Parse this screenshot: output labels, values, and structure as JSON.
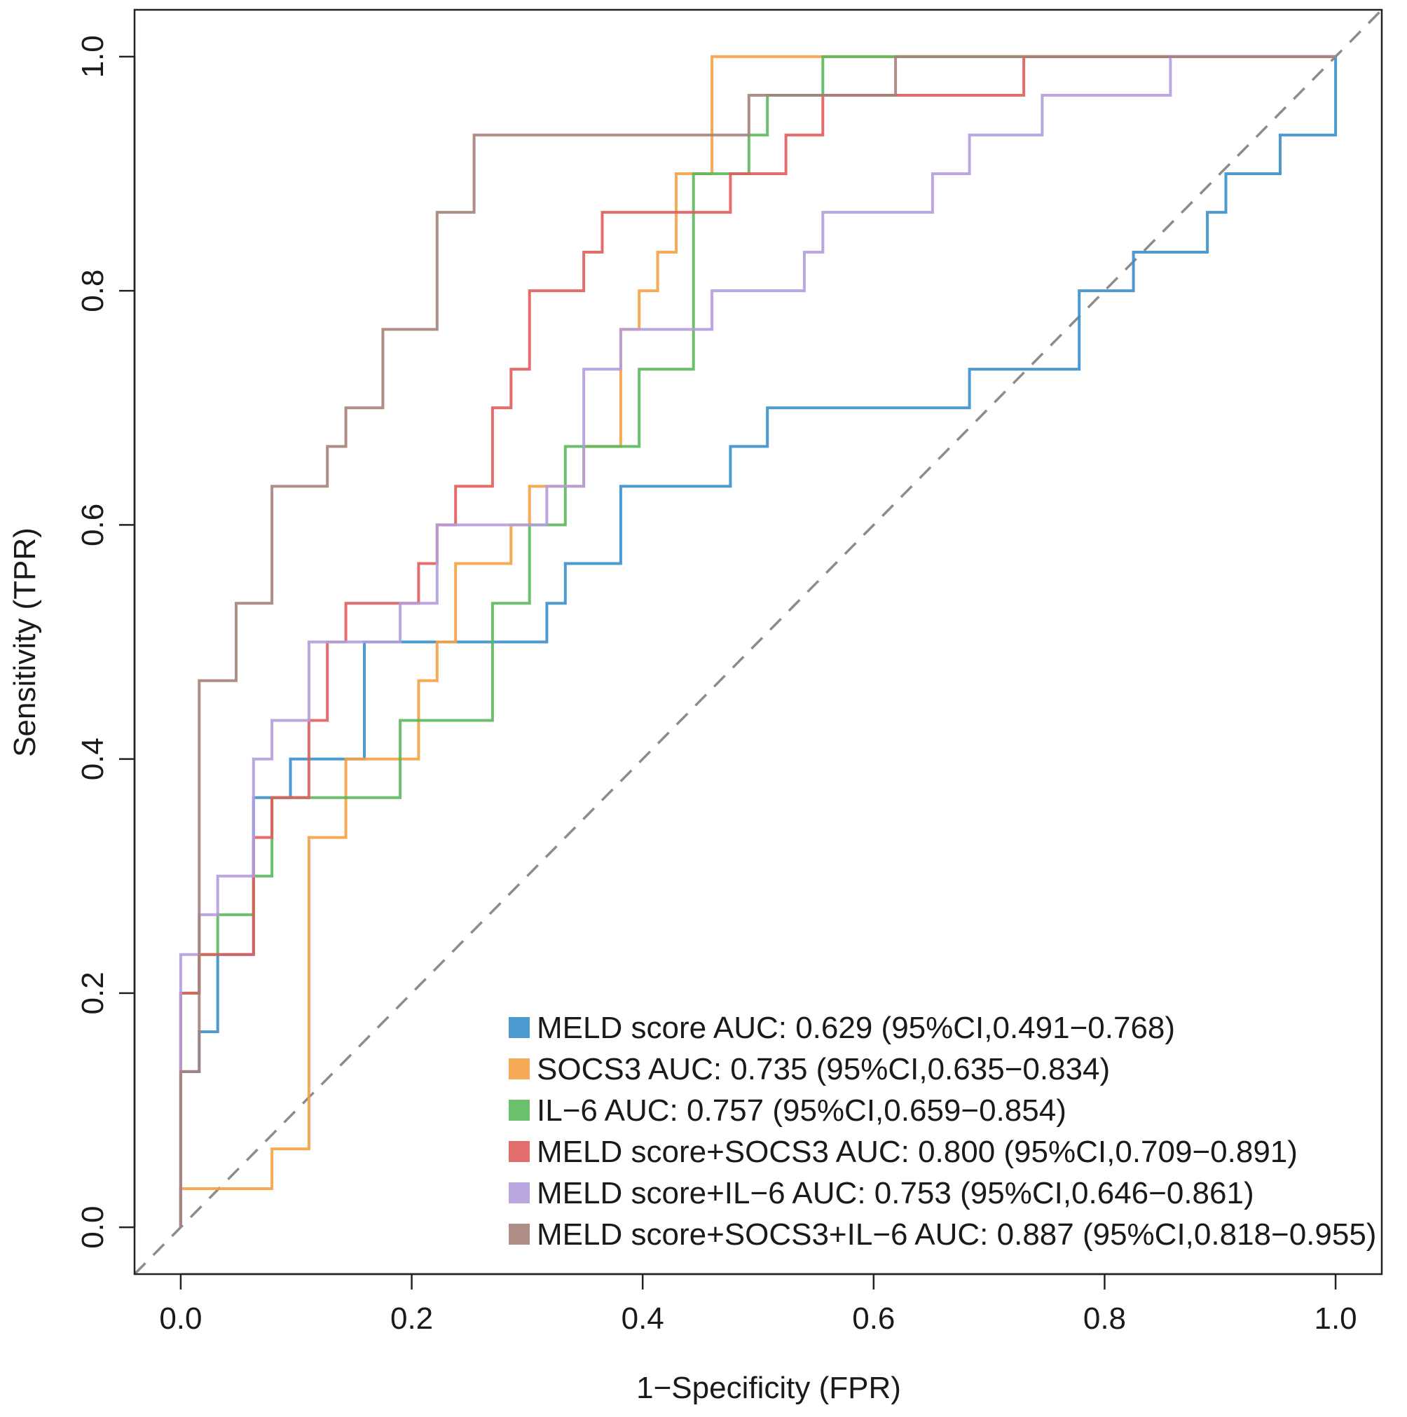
{
  "chart_data": {
    "type": "line",
    "xlabel": "1−Specificity (FPR)",
    "ylabel": "Sensitivity (TPR)",
    "xlim": [
      -0.04,
      1.04
    ],
    "ylim": [
      -0.04,
      1.04
    ],
    "xticks": [
      "0.0",
      "0.2",
      "0.4",
      "0.6",
      "0.8",
      "1.0"
    ],
    "yticks": [
      "0.0",
      "0.2",
      "0.4",
      "0.6",
      "0.8",
      "1.0"
    ],
    "legend_position": "bottom-right",
    "reference_line": "diagonal dashed",
    "series": [
      {
        "name": "MELD score",
        "legend": "MELD score AUC: 0.629 (95%CI,0.491−0.768)",
        "color": "#3a8fcc",
        "x": [
          0,
          0,
          0.016,
          0.016,
          0.032,
          0.032,
          0.063,
          0.063,
          0.095,
          0.095,
          0.159,
          0.159,
          0.317,
          0.317,
          0.333,
          0.333,
          0.381,
          0.381,
          0.476,
          0.476,
          0.508,
          0.508,
          0.683,
          0.683,
          0.778,
          0.778,
          0.825,
          0.825,
          0.889,
          0.889,
          0.905,
          0.905,
          0.952,
          0.952,
          1.0,
          1.0
        ],
        "y": [
          0,
          0.133,
          0.133,
          0.167,
          0.167,
          0.233,
          0.233,
          0.367,
          0.367,
          0.4,
          0.4,
          0.5,
          0.5,
          0.533,
          0.533,
          0.567,
          0.567,
          0.633,
          0.633,
          0.667,
          0.667,
          0.7,
          0.7,
          0.733,
          0.733,
          0.8,
          0.8,
          0.833,
          0.833,
          0.867,
          0.867,
          0.9,
          0.9,
          0.933,
          0.933,
          1.0
        ]
      },
      {
        "name": "SOCS3",
        "legend": "SOCS3 AUC: 0.735 (95%CI,0.635−0.834)",
        "color": "#f5a142",
        "x": [
          0,
          0,
          0.079,
          0.079,
          0.111,
          0.111,
          0.143,
          0.143,
          0.206,
          0.206,
          0.222,
          0.222,
          0.238,
          0.238,
          0.286,
          0.286,
          0.302,
          0.302,
          0.349,
          0.349,
          0.381,
          0.381,
          0.397,
          0.397,
          0.413,
          0.413,
          0.429,
          0.429,
          0.46,
          0.46,
          1.0
        ],
        "y": [
          0,
          0.033,
          0.033,
          0.067,
          0.067,
          0.333,
          0.333,
          0.4,
          0.4,
          0.467,
          0.467,
          0.5,
          0.5,
          0.567,
          0.567,
          0.6,
          0.6,
          0.633,
          0.633,
          0.667,
          0.667,
          0.767,
          0.767,
          0.8,
          0.8,
          0.833,
          0.833,
          0.9,
          0.9,
          1.0,
          1.0
        ]
      },
      {
        "name": "IL-6",
        "legend": "IL−6 AUC: 0.757 (95%CI,0.659−0.854)",
        "color": "#5cb85c",
        "x": [
          0,
          0,
          0.016,
          0.016,
          0.032,
          0.032,
          0.063,
          0.063,
          0.079,
          0.079,
          0.111,
          0.111,
          0.19,
          0.19,
          0.27,
          0.27,
          0.302,
          0.302,
          0.333,
          0.333,
          0.397,
          0.397,
          0.444,
          0.444,
          0.492,
          0.492,
          0.508,
          0.508,
          0.556,
          0.556,
          1.0
        ],
        "y": [
          0,
          0.2,
          0.2,
          0.233,
          0.233,
          0.267,
          0.267,
          0.3,
          0.3,
          0.367,
          0.367,
          0.367,
          0.367,
          0.433,
          0.433,
          0.533,
          0.533,
          0.6,
          0.6,
          0.667,
          0.667,
          0.733,
          0.733,
          0.9,
          0.9,
          0.933,
          0.933,
          0.967,
          0.967,
          1.0,
          1.0
        ]
      },
      {
        "name": "MELD score+SOCS3",
        "legend": "MELD score+SOCS3 AUC: 0.800 (95%CI,0.709−0.891)",
        "color": "#e05c5c",
        "x": [
          0,
          0,
          0.016,
          0.016,
          0.063,
          0.063,
          0.079,
          0.079,
          0.111,
          0.111,
          0.127,
          0.127,
          0.143,
          0.143,
          0.206,
          0.206,
          0.222,
          0.222,
          0.238,
          0.238,
          0.27,
          0.27,
          0.286,
          0.286,
          0.302,
          0.302,
          0.349,
          0.349,
          0.365,
          0.365,
          0.476,
          0.476,
          0.524,
          0.524,
          0.556,
          0.556,
          0.73,
          0.73,
          1.0
        ],
        "y": [
          0,
          0.2,
          0.2,
          0.233,
          0.233,
          0.333,
          0.333,
          0.367,
          0.367,
          0.433,
          0.433,
          0.5,
          0.5,
          0.533,
          0.533,
          0.567,
          0.567,
          0.6,
          0.6,
          0.633,
          0.633,
          0.7,
          0.7,
          0.733,
          0.733,
          0.8,
          0.8,
          0.833,
          0.833,
          0.867,
          0.867,
          0.9,
          0.9,
          0.933,
          0.933,
          0.967,
          0.967,
          1.0,
          1.0
        ]
      },
      {
        "name": "MELD score+IL-6",
        "legend": "MELD score+IL−6 AUC: 0.753 (95%CI,0.646−0.861)",
        "color": "#b39ddb",
        "x": [
          0,
          0,
          0.016,
          0.016,
          0.032,
          0.032,
          0.063,
          0.063,
          0.079,
          0.079,
          0.111,
          0.111,
          0.19,
          0.19,
          0.222,
          0.222,
          0.317,
          0.317,
          0.349,
          0.349,
          0.381,
          0.381,
          0.46,
          0.46,
          0.54,
          0.54,
          0.556,
          0.556,
          0.651,
          0.651,
          0.683,
          0.683,
          0.746,
          0.746,
          0.857,
          0.857,
          1.0
        ],
        "y": [
          0,
          0.233,
          0.233,
          0.267,
          0.267,
          0.3,
          0.3,
          0.4,
          0.4,
          0.433,
          0.433,
          0.5,
          0.5,
          0.533,
          0.533,
          0.6,
          0.6,
          0.633,
          0.633,
          0.733,
          0.733,
          0.767,
          0.767,
          0.8,
          0.8,
          0.833,
          0.833,
          0.867,
          0.867,
          0.9,
          0.9,
          0.933,
          0.933,
          0.967,
          0.967,
          1.0,
          1.0
        ]
      },
      {
        "name": "MELD score+SOCS3+IL-6",
        "legend": "MELD score+SOCS3+IL−6 AUC: 0.887 (95%CI,0.818−0.955)",
        "color": "#a6827a",
        "x": [
          0,
          0,
          0.016,
          0.016,
          0.048,
          0.048,
          0.079,
          0.079,
          0.127,
          0.127,
          0.143,
          0.143,
          0.175,
          0.175,
          0.222,
          0.222,
          0.254,
          0.254,
          0.492,
          0.492,
          0.619,
          0.619,
          1.0
        ],
        "y": [
          0,
          0.133,
          0.133,
          0.467,
          0.467,
          0.533,
          0.533,
          0.633,
          0.633,
          0.667,
          0.667,
          0.7,
          0.7,
          0.767,
          0.767,
          0.867,
          0.867,
          0.933,
          0.933,
          0.967,
          0.967,
          1.0,
          1.0
        ]
      }
    ]
  }
}
